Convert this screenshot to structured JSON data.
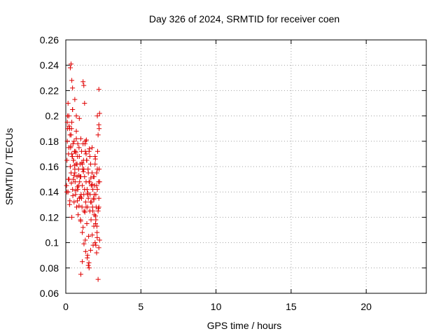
{
  "chart_data": {
    "type": "scatter",
    "title": "Day 326 of 2024, SRMTID for receiver coen",
    "xlabel": "GPS time / hours",
    "ylabel": "SRMTID / TECUs",
    "xlim": [
      0,
      24
    ],
    "ylim": [
      0.06,
      0.26
    ],
    "xticks": [
      0,
      5,
      10,
      15,
      20
    ],
    "xtick_labels": [
      "0",
      "5",
      "10",
      "15",
      "20"
    ],
    "yticks": [
      0.06,
      0.08,
      0.1,
      0.12,
      0.14,
      0.16,
      0.18,
      0.2,
      0.22,
      0.24,
      0.26
    ],
    "ytick_labels": [
      "0.06",
      "0.08",
      "0.1",
      "0.12",
      "0.14",
      "0.16",
      "0.18",
      "0.2",
      "0.22",
      "0.24",
      "0.26"
    ],
    "grid": true,
    "marker": "+",
    "color": "#e00000",
    "series": [
      {
        "name": "SRMTID",
        "x": [
          0.05,
          0.08,
          0.1,
          0.12,
          0.15,
          0.18,
          0.2,
          0.22,
          0.25,
          0.28,
          0.3,
          0.32,
          0.35,
          0.38,
          0.4,
          0.42,
          0.45,
          0.48,
          0.5,
          0.52,
          0.55,
          0.58,
          0.6,
          0.62,
          0.65,
          0.68,
          0.7,
          0.72,
          0.75,
          0.78,
          0.8,
          0.82,
          0.85,
          0.88,
          0.9,
          0.92,
          0.95,
          0.98,
          1.0,
          1.02,
          1.05,
          1.08,
          1.1,
          1.12,
          1.15,
          1.18,
          1.2,
          1.22,
          1.25,
          1.28,
          1.3,
          1.32,
          1.35,
          1.38,
          1.4,
          1.42,
          1.45,
          1.48,
          1.5,
          1.52,
          1.55,
          1.58,
          1.6,
          1.62,
          1.65,
          1.68,
          1.7,
          1.72,
          1.75,
          1.78,
          1.8,
          1.82,
          1.85,
          1.88,
          1.9,
          1.92,
          1.95,
          1.98,
          2.0,
          2.02,
          2.05,
          2.08,
          2.1,
          2.12,
          2.15,
          2.18,
          2.2,
          2.22,
          2.25,
          0.1,
          0.15,
          0.2,
          0.25,
          0.3,
          0.35,
          0.4,
          0.45,
          0.5,
          0.55,
          0.6,
          0.65,
          0.7,
          0.75,
          0.8,
          0.85,
          0.9,
          0.95,
          1.0,
          1.05,
          1.1,
          1.15,
          1.2,
          1.25,
          1.3,
          1.35,
          1.4,
          1.45,
          1.5,
          1.55,
          1.6,
          1.65,
          1.7,
          1.75,
          1.8,
          1.85,
          1.9,
          1.95,
          2.0,
          2.05,
          2.1,
          2.15,
          2.2,
          2.25,
          0.12,
          0.22,
          0.33,
          0.44,
          0.55,
          0.66,
          0.77,
          0.88,
          0.99,
          1.1,
          1.21,
          1.32,
          1.43,
          1.54,
          1.65,
          1.76,
          1.87,
          1.98,
          2.09,
          2.2,
          0.07,
          0.17,
          0.27,
          0.37,
          0.47,
          0.57,
          0.67,
          0.77,
          0.87,
          0.97,
          1.07,
          1.17,
          1.27,
          1.37,
          1.47,
          1.57,
          1.67,
          1.77,
          1.87,
          1.97,
          2.07,
          2.17,
          0.3,
          0.35,
          0.4,
          0.45,
          1.15,
          1.2,
          1.25,
          2.2,
          2.25,
          2.22,
          1.3,
          1.35,
          1.45,
          1.5,
          1.55,
          1.95,
          2.0,
          2.05,
          0.4,
          0.45,
          0.6,
          0.7,
          0.9,
          1.0,
          1.1,
          2.1,
          2.15,
          2.2
        ],
        "y": [
          0.145,
          0.165,
          0.18,
          0.19,
          0.14,
          0.17,
          0.2,
          0.15,
          0.13,
          0.185,
          0.16,
          0.175,
          0.155,
          0.19,
          0.12,
          0.168,
          0.142,
          0.178,
          0.15,
          0.165,
          0.132,
          0.172,
          0.158,
          0.148,
          0.138,
          0.162,
          0.182,
          0.128,
          0.152,
          0.168,
          0.142,
          0.122,
          0.158,
          0.175,
          0.135,
          0.148,
          0.162,
          0.118,
          0.152,
          0.138,
          0.172,
          0.128,
          0.145,
          0.158,
          0.112,
          0.165,
          0.138,
          0.125,
          0.152,
          0.178,
          0.102,
          0.132,
          0.148,
          0.165,
          0.115,
          0.142,
          0.128,
          0.158,
          0.135,
          0.105,
          0.172,
          0.148,
          0.125,
          0.138,
          0.162,
          0.118,
          0.145,
          0.132,
          0.155,
          0.128,
          0.142,
          0.098,
          0.135,
          0.152,
          0.122,
          0.145,
          0.168,
          0.115,
          0.138,
          0.128,
          0.155,
          0.108,
          0.142,
          0.172,
          0.125,
          0.148,
          0.135,
          0.158,
          0.102,
          0.195,
          0.21,
          0.175,
          0.19,
          0.16,
          0.185,
          0.17,
          0.205,
          0.165,
          0.18,
          0.155,
          0.172,
          0.188,
          0.162,
          0.178,
          0.145,
          0.168,
          0.152,
          0.182,
          0.135,
          0.162,
          0.178,
          0.158,
          0.142,
          0.172,
          0.128,
          0.165,
          0.138,
          0.155,
          0.148,
          0.168,
          0.132,
          0.145,
          0.175,
          0.125,
          0.152,
          0.138,
          0.162,
          0.118,
          0.145,
          0.158,
          0.185,
          0.128,
          0.148,
          0.2,
          0.192,
          0.176,
          0.168,
          0.153,
          0.141,
          0.133,
          0.129,
          0.117,
          0.108,
          0.099,
          0.093,
          0.088,
          0.084,
          0.094,
          0.106,
          0.113,
          0.121,
          0.104,
          0.096,
          0.14,
          0.15,
          0.133,
          0.147,
          0.137,
          0.161,
          0.171,
          0.144,
          0.153,
          0.136,
          0.163,
          0.156,
          0.124,
          0.181,
          0.139,
          0.174,
          0.151,
          0.146,
          0.134,
          0.166,
          0.113,
          0.127,
          0.238,
          0.241,
          0.228,
          0.222,
          0.227,
          0.224,
          0.21,
          0.221,
          0.202,
          0.19,
          0.18,
          0.17,
          0.09,
          0.082,
          0.08,
          0.1,
          0.098,
          0.092,
          0.195,
          0.205,
          0.213,
          0.2,
          0.198,
          0.075,
          0.085,
          0.2,
          0.071,
          0.193
        ]
      }
    ]
  }
}
